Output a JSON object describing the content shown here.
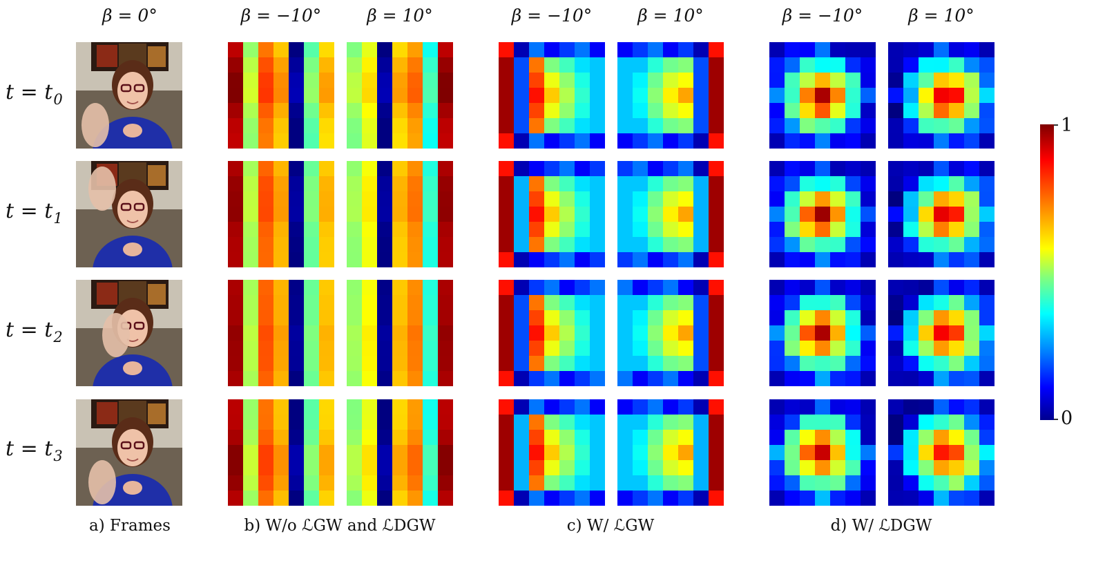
{
  "figure": {
    "column_headers": [
      "β = 0°",
      "β = −10°",
      "β = 10°",
      "β = −10°",
      "β = 10°",
      "β = −10°",
      "β = 10°"
    ],
    "rows": [
      {
        "t": "t",
        "eq": " = ",
        "var": "t",
        "sub": "0"
      },
      {
        "t": "t",
        "eq": " = ",
        "var": "t",
        "sub": "1"
      },
      {
        "t": "t",
        "eq": " = ",
        "var": "t",
        "sub": "2"
      },
      {
        "t": "t",
        "eq": " = ",
        "var": "t",
        "sub": "3"
      }
    ],
    "captions": {
      "a": "a) Frames",
      "b": "b) W/o ℒGW and ℒDGW",
      "c": "c) W/ ℒGW",
      "d": "d) W/ ℒDGW"
    },
    "colorbar": {
      "max_label": "1",
      "min_label": "0"
    }
  },
  "chart_data": {
    "type": "heatmap",
    "title": "",
    "colormap": "jet",
    "value_range": [
      0,
      1
    ],
    "grid_size": [
      7,
      7
    ],
    "panels": [
      {
        "group": "b",
        "beta": -10,
        "pattern": "columns_left",
        "values": [
          1.0,
          0.58,
          0.82,
          0.74,
          0.05,
          0.52,
          0.72
        ]
      },
      {
        "group": "b",
        "beta": 10,
        "pattern": "columns_right",
        "values": [
          0.56,
          0.66,
          0.05,
          0.72,
          0.78,
          0.45,
          1.0
        ]
      },
      {
        "group": "c",
        "beta": -10,
        "pattern": "frame_left"
      },
      {
        "group": "c",
        "beta": 10,
        "pattern": "frame_right"
      },
      {
        "group": "d",
        "beta": -10,
        "pattern": "radial"
      },
      {
        "group": "d",
        "beta": 10,
        "pattern": "radial"
      }
    ],
    "rows": [
      "t0",
      "t1",
      "t2",
      "t3"
    ]
  }
}
